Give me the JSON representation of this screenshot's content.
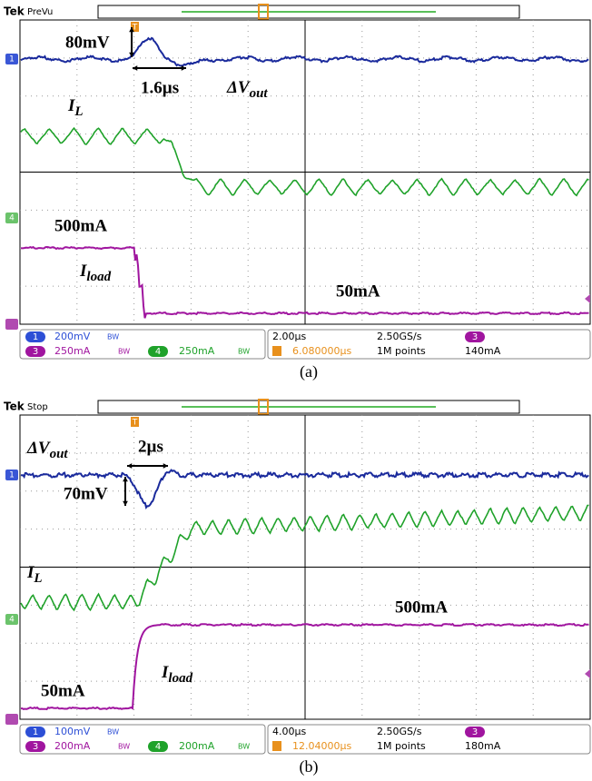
{
  "panels": [
    {
      "brand": "Tek",
      "mode": "PreVu",
      "trigger_marker": "T",
      "channel_labels": [
        "1",
        "4"
      ],
      "annotations": {
        "dv_amp": "80mV",
        "dt": "1.6µs",
        "dv": "ΔV",
        "dv_sub": "out",
        "il": "I",
        "il_sub": "L",
        "iload": "I",
        "iload_sub": "load",
        "i_high": "500mA",
        "i_low": "50mA"
      },
      "status": {
        "ch1": "1",
        "ch1_scale": "200mV",
        "ch1_bw": "BW",
        "ch3": "3",
        "ch3_scale": "250mA",
        "ch3_bw": "BW",
        "ch4": "4",
        "ch4_scale": "250mA",
        "ch4_bw": "BW",
        "timebase": "2.00µs",
        "rate": "2.50GS/s",
        "trig_pos": "6.080000µs",
        "points": "1M points",
        "trig_ch": "3",
        "trig_level": "140mA"
      },
      "caption": "(a)"
    },
    {
      "brand": "Tek",
      "mode": "Stop",
      "trigger_marker": "T",
      "channel_labels": [
        "1",
        "4"
      ],
      "annotations": {
        "dv_amp": "70mV",
        "dt": "2µs",
        "dv": "ΔV",
        "dv_sub": "out",
        "il": "I",
        "il_sub": "L",
        "iload": "I",
        "iload_sub": "load",
        "i_high": "500mA",
        "i_low": "50mA"
      },
      "status": {
        "ch1": "1",
        "ch1_scale": "100mV",
        "ch1_bw": "BW",
        "ch3": "3",
        "ch3_scale": "200mA",
        "ch3_bw": "BW",
        "ch4": "4",
        "ch4_scale": "200mA",
        "ch4_bw": "BW",
        "timebase": "4.00µs",
        "rate": "2.50GS/s",
        "trig_pos": "12.04000µs",
        "points": "1M points",
        "trig_ch": "3",
        "trig_level": "180mA"
      },
      "caption": "(b)"
    }
  ]
}
